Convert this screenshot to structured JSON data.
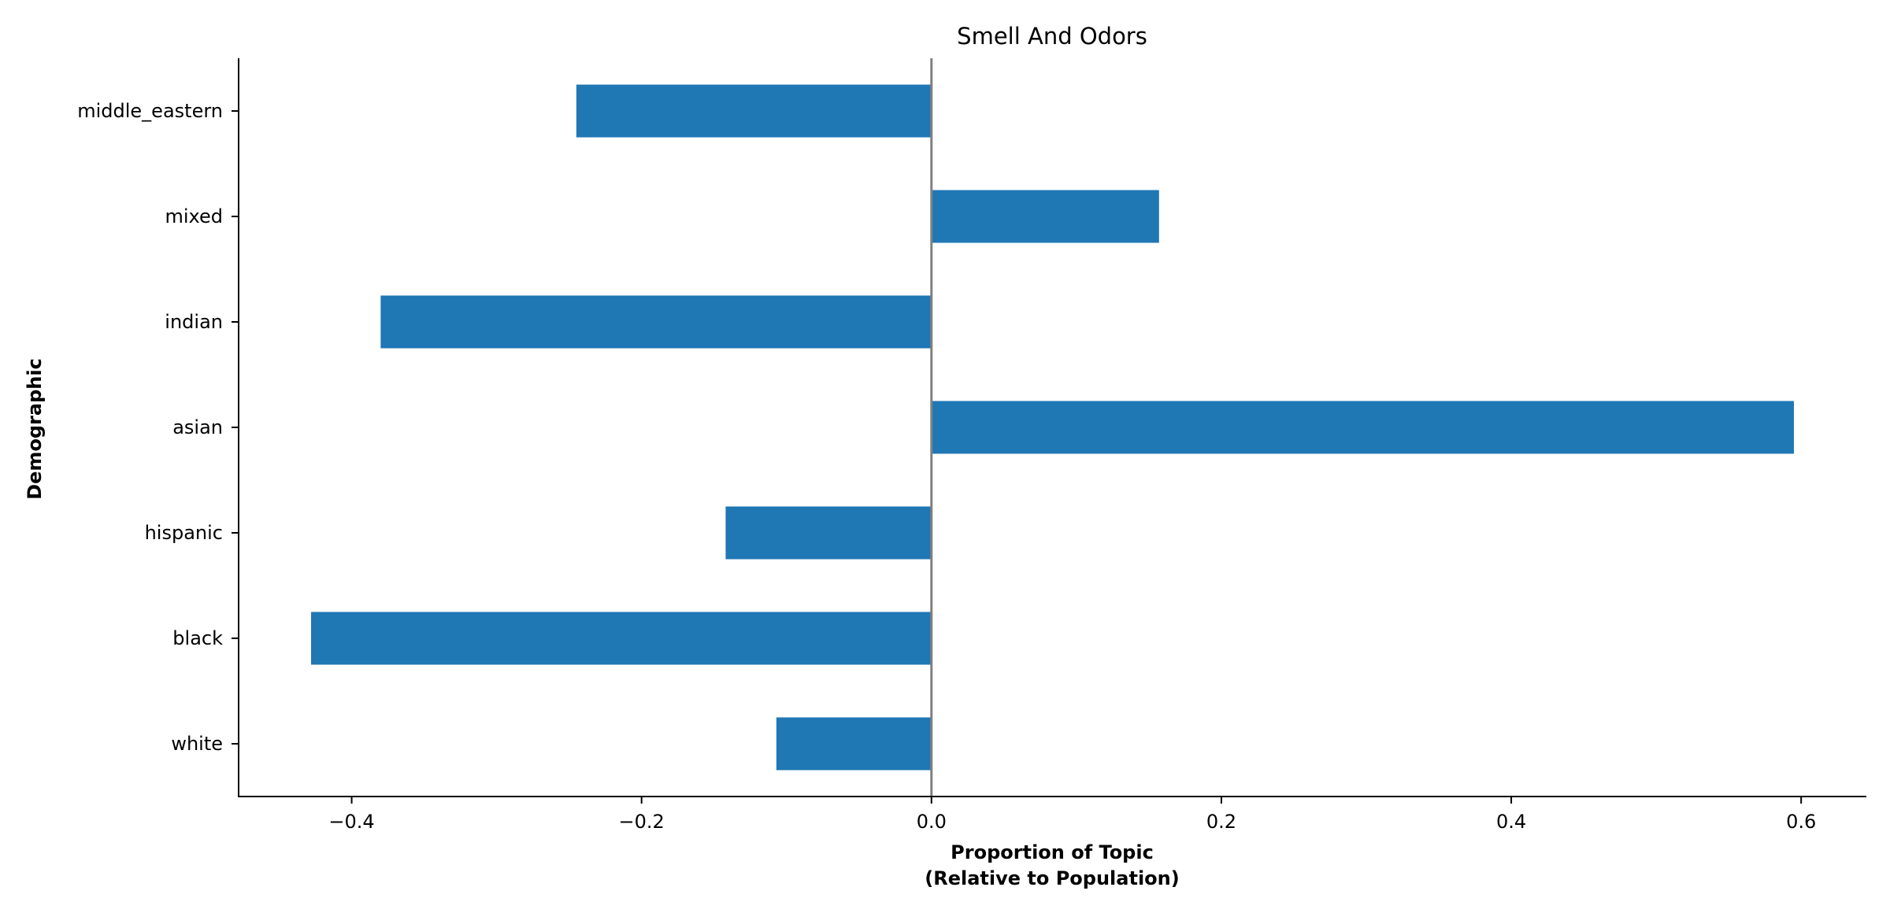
{
  "chart_data": {
    "type": "bar",
    "orientation": "horizontal",
    "title": "Smell And Odors",
    "xlabel_lines": [
      "Proportion of Topic",
      "(Relative to Population)"
    ],
    "ylabel": "Demographic",
    "categories": [
      "white",
      "black",
      "hispanic",
      "asian",
      "indian",
      "mixed",
      "middle_eastern"
    ],
    "values": [
      -0.107,
      -0.428,
      -0.142,
      0.595,
      -0.38,
      0.157,
      -0.245
    ],
    "xlim": [
      -0.478,
      0.645
    ],
    "xticks": [
      -0.4,
      -0.2,
      0.0,
      0.2,
      0.4,
      0.6
    ],
    "xtick_labels": [
      "−0.4",
      "−0.2",
      "0.0",
      "0.2",
      "0.4",
      "0.6"
    ],
    "bar_color": "#1f77b4",
    "zero_line_color": "#808080",
    "grid": false,
    "legend": "none"
  }
}
